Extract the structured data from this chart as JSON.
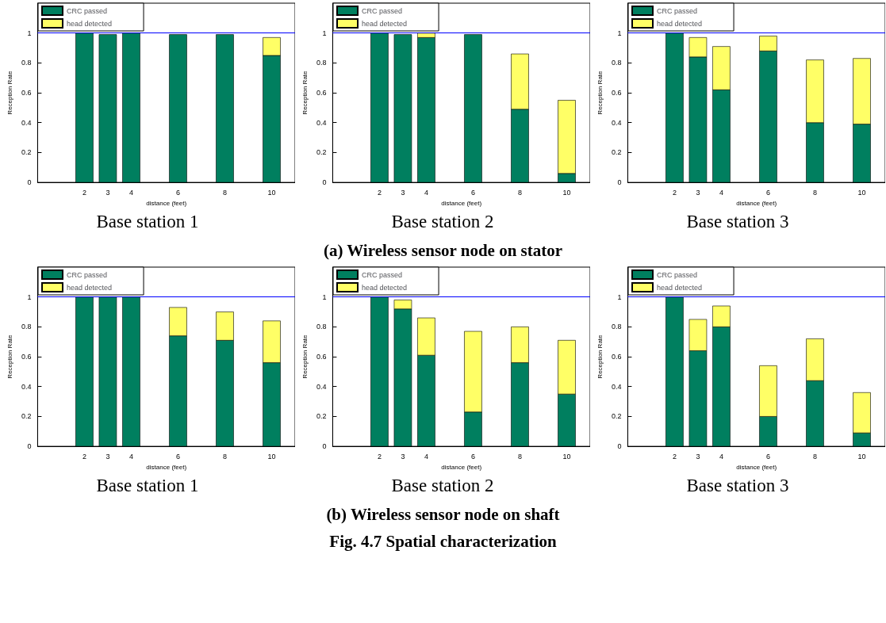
{
  "chart_data": [
    {
      "type": "bar",
      "title": "Base station 1",
      "xlabel": "distance (feet)",
      "ylabel": "Reception Rate",
      "x": [
        2,
        3,
        4,
        6,
        8,
        10
      ],
      "stacked": true,
      "xlim": [
        0,
        11
      ],
      "xticks": [
        2,
        3,
        4,
        6,
        8,
        10
      ],
      "ylim": [
        0,
        1.2
      ],
      "yticks": [
        0,
        0.2,
        0.4,
        0.6,
        0.8,
        1
      ],
      "grid": false,
      "legend": "top left",
      "ref_lines": [
        {
          "axis": "y",
          "value": 1,
          "color": "#0000ff"
        }
      ],
      "annotations": [
        "(a) Wireless sensor node on stator"
      ],
      "series": [
        {
          "name": "CRC passed",
          "color": "#007f5f",
          "values": [
            1,
            0.99,
            1,
            0.99,
            0.99,
            0.85
          ]
        },
        {
          "name": "head detected",
          "color": "#ffff66",
          "values": [
            null,
            null,
            null,
            null,
            null,
            0.12
          ]
        }
      ]
    },
    {
      "type": "bar",
      "title": "Base station 2",
      "xlabel": "distance (feet)",
      "ylabel": "Reception Rate",
      "x": [
        2,
        3,
        4,
        6,
        8,
        10
      ],
      "stacked": true,
      "xlim": [
        0,
        11
      ],
      "xticks": [
        2,
        3,
        4,
        6,
        8,
        10
      ],
      "ylim": [
        0,
        1.2
      ],
      "yticks": [
        0,
        0.2,
        0.4,
        0.6,
        0.8,
        1
      ],
      "grid": false,
      "legend": "top left",
      "ref_lines": [
        {
          "axis": "y",
          "value": 1,
          "color": "#0000ff"
        }
      ],
      "series": [
        {
          "name": "CRC passed",
          "color": "#007f5f",
          "values": [
            1,
            0.99,
            0.97,
            0.99,
            0.49,
            0.06
          ]
        },
        {
          "name": "head detected",
          "color": "#ffff66",
          "values": [
            null,
            null,
            0.03,
            null,
            0.37,
            0.49
          ]
        }
      ]
    },
    {
      "type": "bar",
      "title": "Base station 3",
      "xlabel": "distance (feet)",
      "ylabel": "Reception Rate",
      "x": [
        2,
        3,
        4,
        6,
        8,
        10
      ],
      "stacked": true,
      "xlim": [
        0,
        11
      ],
      "xticks": [
        2,
        3,
        4,
        6,
        8,
        10
      ],
      "ylim": [
        0,
        1.2
      ],
      "yticks": [
        0,
        0.2,
        0.4,
        0.6,
        0.8,
        1
      ],
      "grid": false,
      "legend": "top left",
      "ref_lines": [
        {
          "axis": "y",
          "value": 1,
          "color": "#0000ff"
        }
      ],
      "series": [
        {
          "name": "CRC passed",
          "color": "#007f5f",
          "values": [
            1,
            0.84,
            0.62,
            0.88,
            0.4,
            0.39
          ]
        },
        {
          "name": "head detected",
          "color": "#ffff66",
          "values": [
            null,
            0.13,
            0.29,
            0.1,
            0.42,
            0.44
          ]
        }
      ]
    },
    {
      "type": "bar",
      "title": "Base station 1",
      "xlabel": "distance (feet)",
      "ylabel": "Reception Rate",
      "x": [
        2,
        3,
        4,
        6,
        8,
        10
      ],
      "stacked": true,
      "xlim": [
        0,
        11
      ],
      "xticks": [
        2,
        3,
        4,
        6,
        8,
        10
      ],
      "ylim": [
        0,
        1.2
      ],
      "yticks": [
        0,
        0.2,
        0.4,
        0.6,
        0.8,
        1
      ],
      "grid": false,
      "legend": "top left",
      "ref_lines": [
        {
          "axis": "y",
          "value": 1,
          "color": "#0000ff"
        }
      ],
      "annotations": [
        "(b) Wireless sensor node on shaft"
      ],
      "series": [
        {
          "name": "CRC passed",
          "color": "#007f5f",
          "values": [
            1,
            1,
            1,
            0.74,
            0.71,
            0.56
          ]
        },
        {
          "name": "head detected",
          "color": "#ffff66",
          "values": [
            null,
            null,
            null,
            0.19,
            0.19,
            0.28
          ]
        }
      ]
    },
    {
      "type": "bar",
      "title": "Base station 2",
      "xlabel": "distance (feet)",
      "ylabel": "Reception Rate",
      "x": [
        2,
        3,
        4,
        6,
        8,
        10
      ],
      "stacked": true,
      "xlim": [
        0,
        11
      ],
      "xticks": [
        2,
        3,
        4,
        6,
        8,
        10
      ],
      "ylim": [
        0,
        1.2
      ],
      "yticks": [
        0,
        0.2,
        0.4,
        0.6,
        0.8,
        1
      ],
      "grid": false,
      "legend": "top left",
      "ref_lines": [
        {
          "axis": "y",
          "value": 1,
          "color": "#0000ff"
        }
      ],
      "series": [
        {
          "name": "CRC passed",
          "color": "#007f5f",
          "values": [
            1,
            0.92,
            0.61,
            0.23,
            0.56,
            0.35
          ]
        },
        {
          "name": "head detected",
          "color": "#ffff66",
          "values": [
            null,
            0.06,
            0.25,
            0.54,
            0.24,
            0.36
          ]
        }
      ]
    },
    {
      "type": "bar",
      "title": "Base station 3",
      "xlabel": "distance (feet)",
      "ylabel": "Reception Rate",
      "x": [
        2,
        3,
        4,
        6,
        8,
        10
      ],
      "stacked": true,
      "xlim": [
        0,
        11
      ],
      "xticks": [
        2,
        3,
        4,
        6,
        8,
        10
      ],
      "ylim": [
        0,
        1.2
      ],
      "yticks": [
        0,
        0.2,
        0.4,
        0.6,
        0.8,
        1
      ],
      "grid": false,
      "legend": "top left",
      "ref_lines": [
        {
          "axis": "y",
          "value": 1,
          "color": "#0000ff"
        }
      ],
      "annotations": [
        "Fig. 4.7  Spatial characterization"
      ],
      "series": [
        {
          "name": "CRC passed",
          "color": "#007f5f",
          "values": [
            1,
            0.64,
            0.8,
            0.2,
            0.44,
            0.09
          ]
        },
        {
          "name": "head detected",
          "color": "#ffff66",
          "values": [
            null,
            0.21,
            0.14,
            0.34,
            0.28,
            0.27
          ]
        }
      ]
    }
  ]
}
